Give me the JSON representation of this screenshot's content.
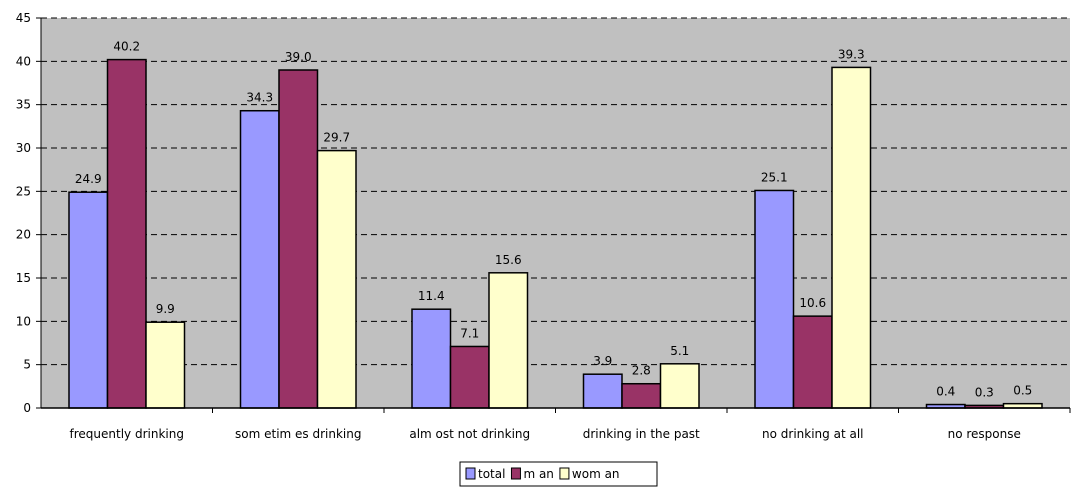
{
  "chart_data": {
    "type": "bar",
    "title": "",
    "xlabel": "",
    "ylabel": "",
    "ylim": [
      0,
      45
    ],
    "yticks": [
      0,
      5,
      10,
      15,
      20,
      25,
      30,
      35,
      40,
      45
    ],
    "grid": true,
    "legend_position": "bottom",
    "categories": [
      "frequently drinking",
      "som etim es drinking",
      "alm ost not drinking",
      "drinking in the past",
      "no drinking at all",
      "no response"
    ],
    "series": [
      {
        "name": "total",
        "color": "#9999ff",
        "values": [
          24.9,
          34.3,
          11.4,
          3.9,
          25.1,
          0.4
        ],
        "labels": [
          "24.9",
          "34.3",
          "11.4",
          "3.9",
          "25.1",
          "0.4"
        ]
      },
      {
        "name": "m an",
        "color": "#993366",
        "values": [
          40.2,
          39.0,
          7.1,
          2.8,
          10.6,
          0.3
        ],
        "labels": [
          "40.2",
          "39.0",
          "7.1",
          "2.8",
          "10.6",
          "0.3"
        ]
      },
      {
        "name": "wom an",
        "color": "#ffffcc",
        "values": [
          9.9,
          29.7,
          15.6,
          5.1,
          39.3,
          0.5
        ],
        "labels": [
          "9.9",
          "29.7",
          "15.6",
          "5.1",
          "39.3",
          "0.5"
        ]
      }
    ],
    "plot_background": "#c0c0c0"
  }
}
